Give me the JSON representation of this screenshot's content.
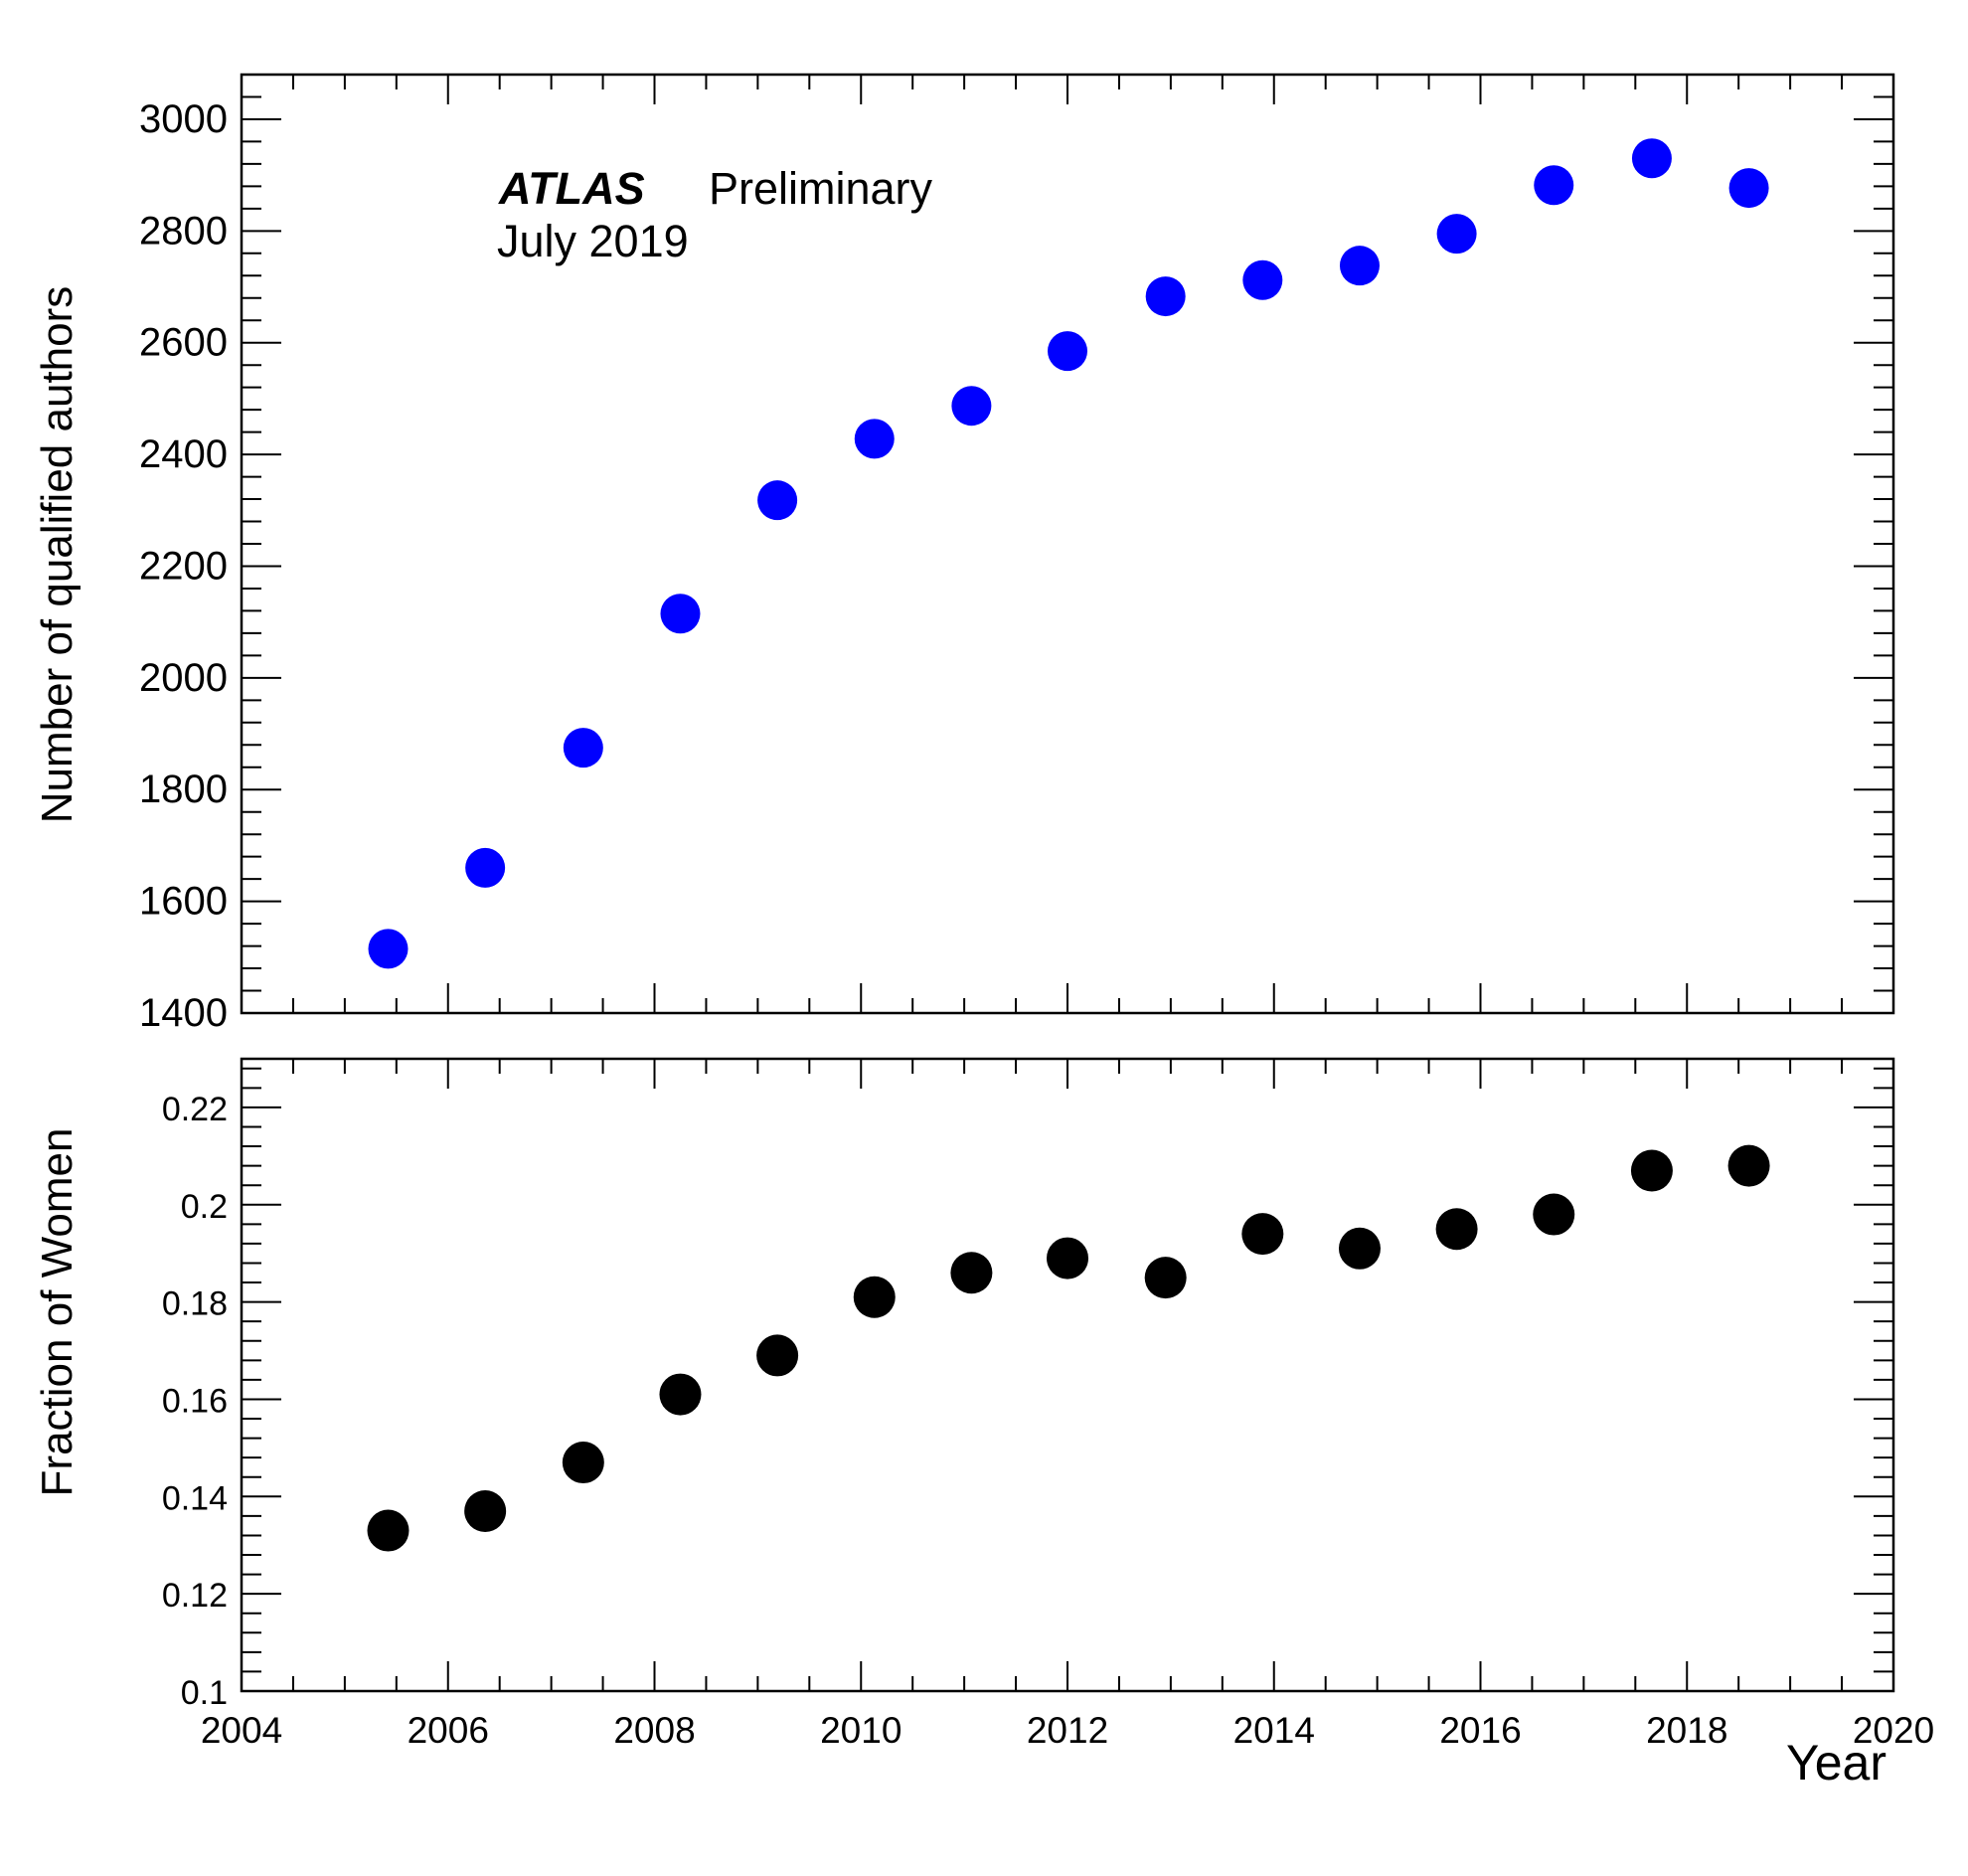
{
  "colors": {
    "top_markers": "#0000ff",
    "bottom_markers": "#000000",
    "frame": "#000000"
  },
  "annotation": {
    "experiment": "ATLAS",
    "status": "Preliminary",
    "date": "July 2019"
  },
  "chart_data": [
    {
      "type": "scatter",
      "title": "",
      "xlabel": "",
      "ylabel": "Number of qualified authors",
      "xlim": [
        2004,
        2020
      ],
      "ylim": [
        1400,
        3080
      ],
      "yticks": [
        1400,
        1600,
        1800,
        2000,
        2200,
        2400,
        2600,
        2800,
        3000
      ],
      "yticklabels": [
        "1400",
        "1600",
        "1800",
        "2000",
        "2200",
        "2400",
        "2600",
        "2800",
        "3000"
      ],
      "grid": false,
      "marker": "filled-circle",
      "color": "#0000ff",
      "x": [
        2005.42,
        2006.36,
        2007.31,
        2008.25,
        2009.19,
        2010.13,
        2011.07,
        2012.0,
        2012.95,
        2013.89,
        2014.83,
        2015.77,
        2016.71,
        2017.66,
        2018.6
      ],
      "y": [
        1515,
        1660,
        1875,
        2115,
        2318,
        2428,
        2487,
        2585,
        2683,
        2712,
        2738,
        2795,
        2882,
        2930,
        2877
      ]
    },
    {
      "type": "scatter",
      "title": "",
      "xlabel": "Year",
      "ylabel": "Fraction of Women",
      "xlim": [
        2004,
        2020
      ],
      "ylim": [
        0.1,
        0.23
      ],
      "xticks": [
        2004,
        2006,
        2008,
        2010,
        2012,
        2014,
        2016,
        2018,
        2020
      ],
      "xticklabels": [
        "2004",
        "2006",
        "2008",
        "2010",
        "2012",
        "2014",
        "2016",
        "2018",
        "2020"
      ],
      "yticks": [
        0.1,
        0.12,
        0.14,
        0.16,
        0.18,
        0.2,
        0.22
      ],
      "yticklabels": [
        "0.1",
        "0.12",
        "0.14",
        "0.16",
        "0.18",
        "0.2",
        "0.22"
      ],
      "grid": false,
      "marker": "filled-circle",
      "color": "#000000",
      "x": [
        2005.42,
        2006.36,
        2007.31,
        2008.25,
        2009.19,
        2010.13,
        2011.07,
        2012.0,
        2012.95,
        2013.89,
        2014.83,
        2015.77,
        2016.71,
        2017.66,
        2018.6
      ],
      "y": [
        0.133,
        0.137,
        0.147,
        0.161,
        0.169,
        0.181,
        0.186,
        0.189,
        0.185,
        0.194,
        0.191,
        0.195,
        0.198,
        0.207,
        0.208
      ]
    }
  ]
}
